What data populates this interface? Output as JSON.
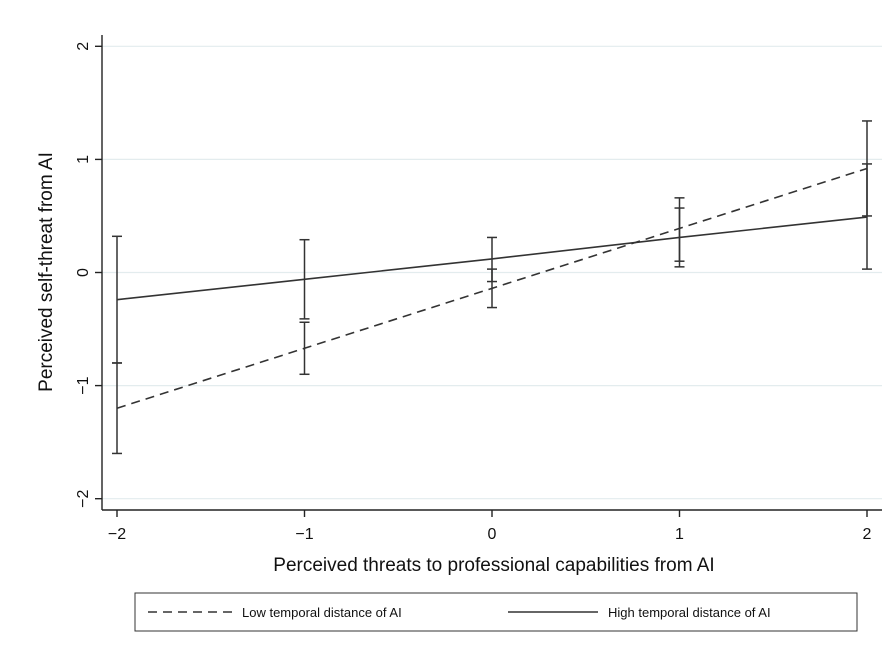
{
  "chart_data": {
    "type": "line",
    "title": "",
    "xlabel": "Perceived threats to professional capabilities from AI",
    "ylabel": "Perceived self-threat from AI",
    "xlim": [
      -2.08,
      2.08
    ],
    "ylim": [
      -2.1,
      2.1
    ],
    "x_ticks": [
      "-2",
      "-1",
      "0",
      "1",
      "2"
    ],
    "y_ticks": [
      "-2",
      "-1",
      "0",
      "1",
      "2"
    ],
    "grid": true,
    "legend_position": "bottom",
    "series": [
      {
        "name": "Low temporal distance of AI",
        "line_style": "dashed",
        "x": [
          -2,
          -1,
          0,
          1,
          2
        ],
        "y": [
          -1.2,
          -0.67,
          -0.14,
          0.39,
          0.92
        ],
        "ci_low": [
          -1.6,
          -0.9,
          -0.31,
          0.1,
          0.5
        ],
        "ci_high": [
          -0.8,
          -0.44,
          0.03,
          0.66,
          1.34
        ]
      },
      {
        "name": "High temporal distance of AI",
        "line_style": "solid",
        "x": [
          -2,
          -1,
          0,
          1,
          2
        ],
        "y": [
          -0.24,
          -0.06,
          0.12,
          0.31,
          0.49
        ],
        "ci_low": [
          -0.8,
          -0.41,
          -0.08,
          0.05,
          0.03
        ],
        "ci_high": [
          0.32,
          0.29,
          0.31,
          0.57,
          0.96
        ]
      }
    ],
    "colors": {
      "line": "#333333",
      "grid": "#e3ecee",
      "background": "#ffffff"
    }
  }
}
